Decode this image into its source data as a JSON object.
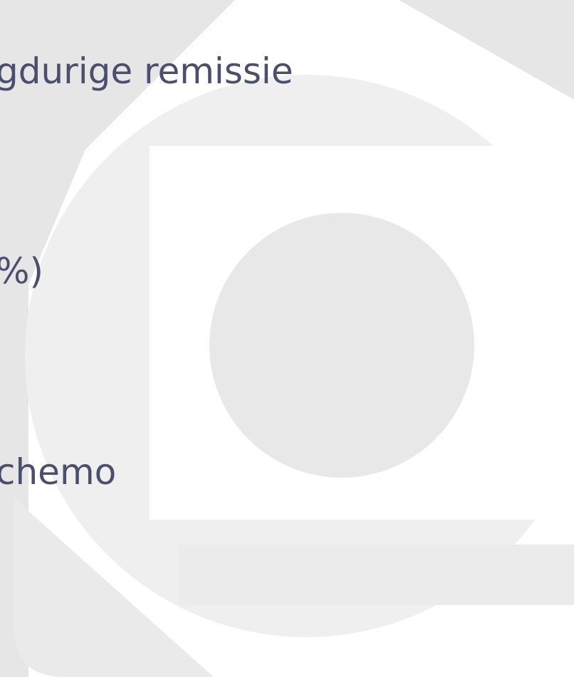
{
  "slide": {
    "lines": [
      "gdurige remissie",
      "%)",
      "chemo"
    ]
  }
}
